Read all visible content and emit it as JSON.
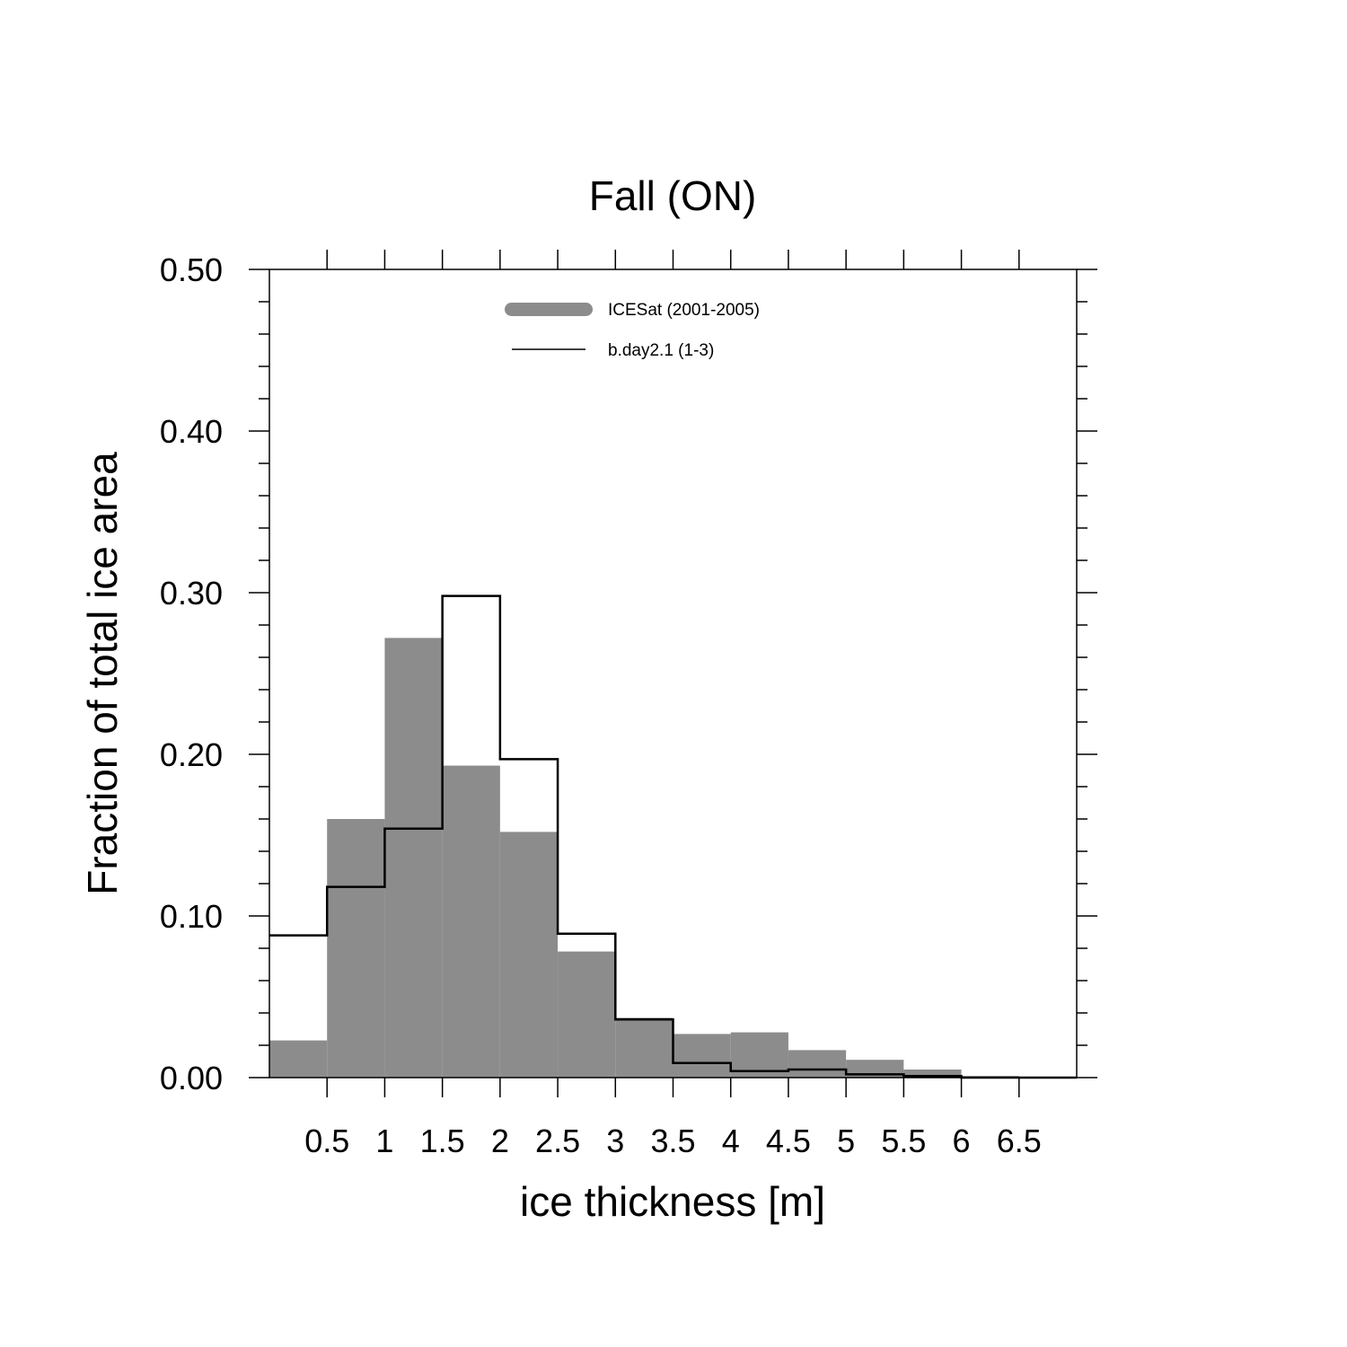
{
  "chart_data": {
    "type": "bar",
    "title": "Fall (ON)",
    "xlabel": "ice thickness [m]",
    "ylabel": "Fraction of total ice area",
    "xlim": [
      0,
      7
    ],
    "ylim": [
      0,
      0.5
    ],
    "x_ticks": [
      "0.5",
      "1",
      "1.5",
      "2",
      "2.5",
      "3",
      "3.5",
      "4",
      "4.5",
      "5",
      "5.5",
      "6",
      "6.5"
    ],
    "y_ticks": [
      "0.00",
      "0.10",
      "0.20",
      "0.30",
      "0.40",
      "0.50"
    ],
    "bin_edges": [
      0,
      0.5,
      1,
      1.5,
      2,
      2.5,
      3,
      3.5,
      4,
      4.5,
      5,
      5.5,
      6,
      6.5,
      7
    ],
    "legend_position": "top-center",
    "series": [
      {
        "name": "ICESat (2001-2005)",
        "style": "filled",
        "color": "#8c8c8c",
        "values": [
          0.023,
          0.16,
          0.272,
          0.193,
          0.152,
          0.078,
          0.037,
          0.027,
          0.028,
          0.017,
          0.011,
          0.005,
          0.001,
          0.0
        ]
      },
      {
        "name": "b.day2.1 (1-3)",
        "style": "step-line",
        "color": "#000000",
        "values": [
          0.088,
          0.118,
          0.154,
          0.298,
          0.197,
          0.089,
          0.036,
          0.009,
          0.004,
          0.005,
          0.002,
          0.001,
          0.0,
          0.0
        ]
      }
    ]
  }
}
